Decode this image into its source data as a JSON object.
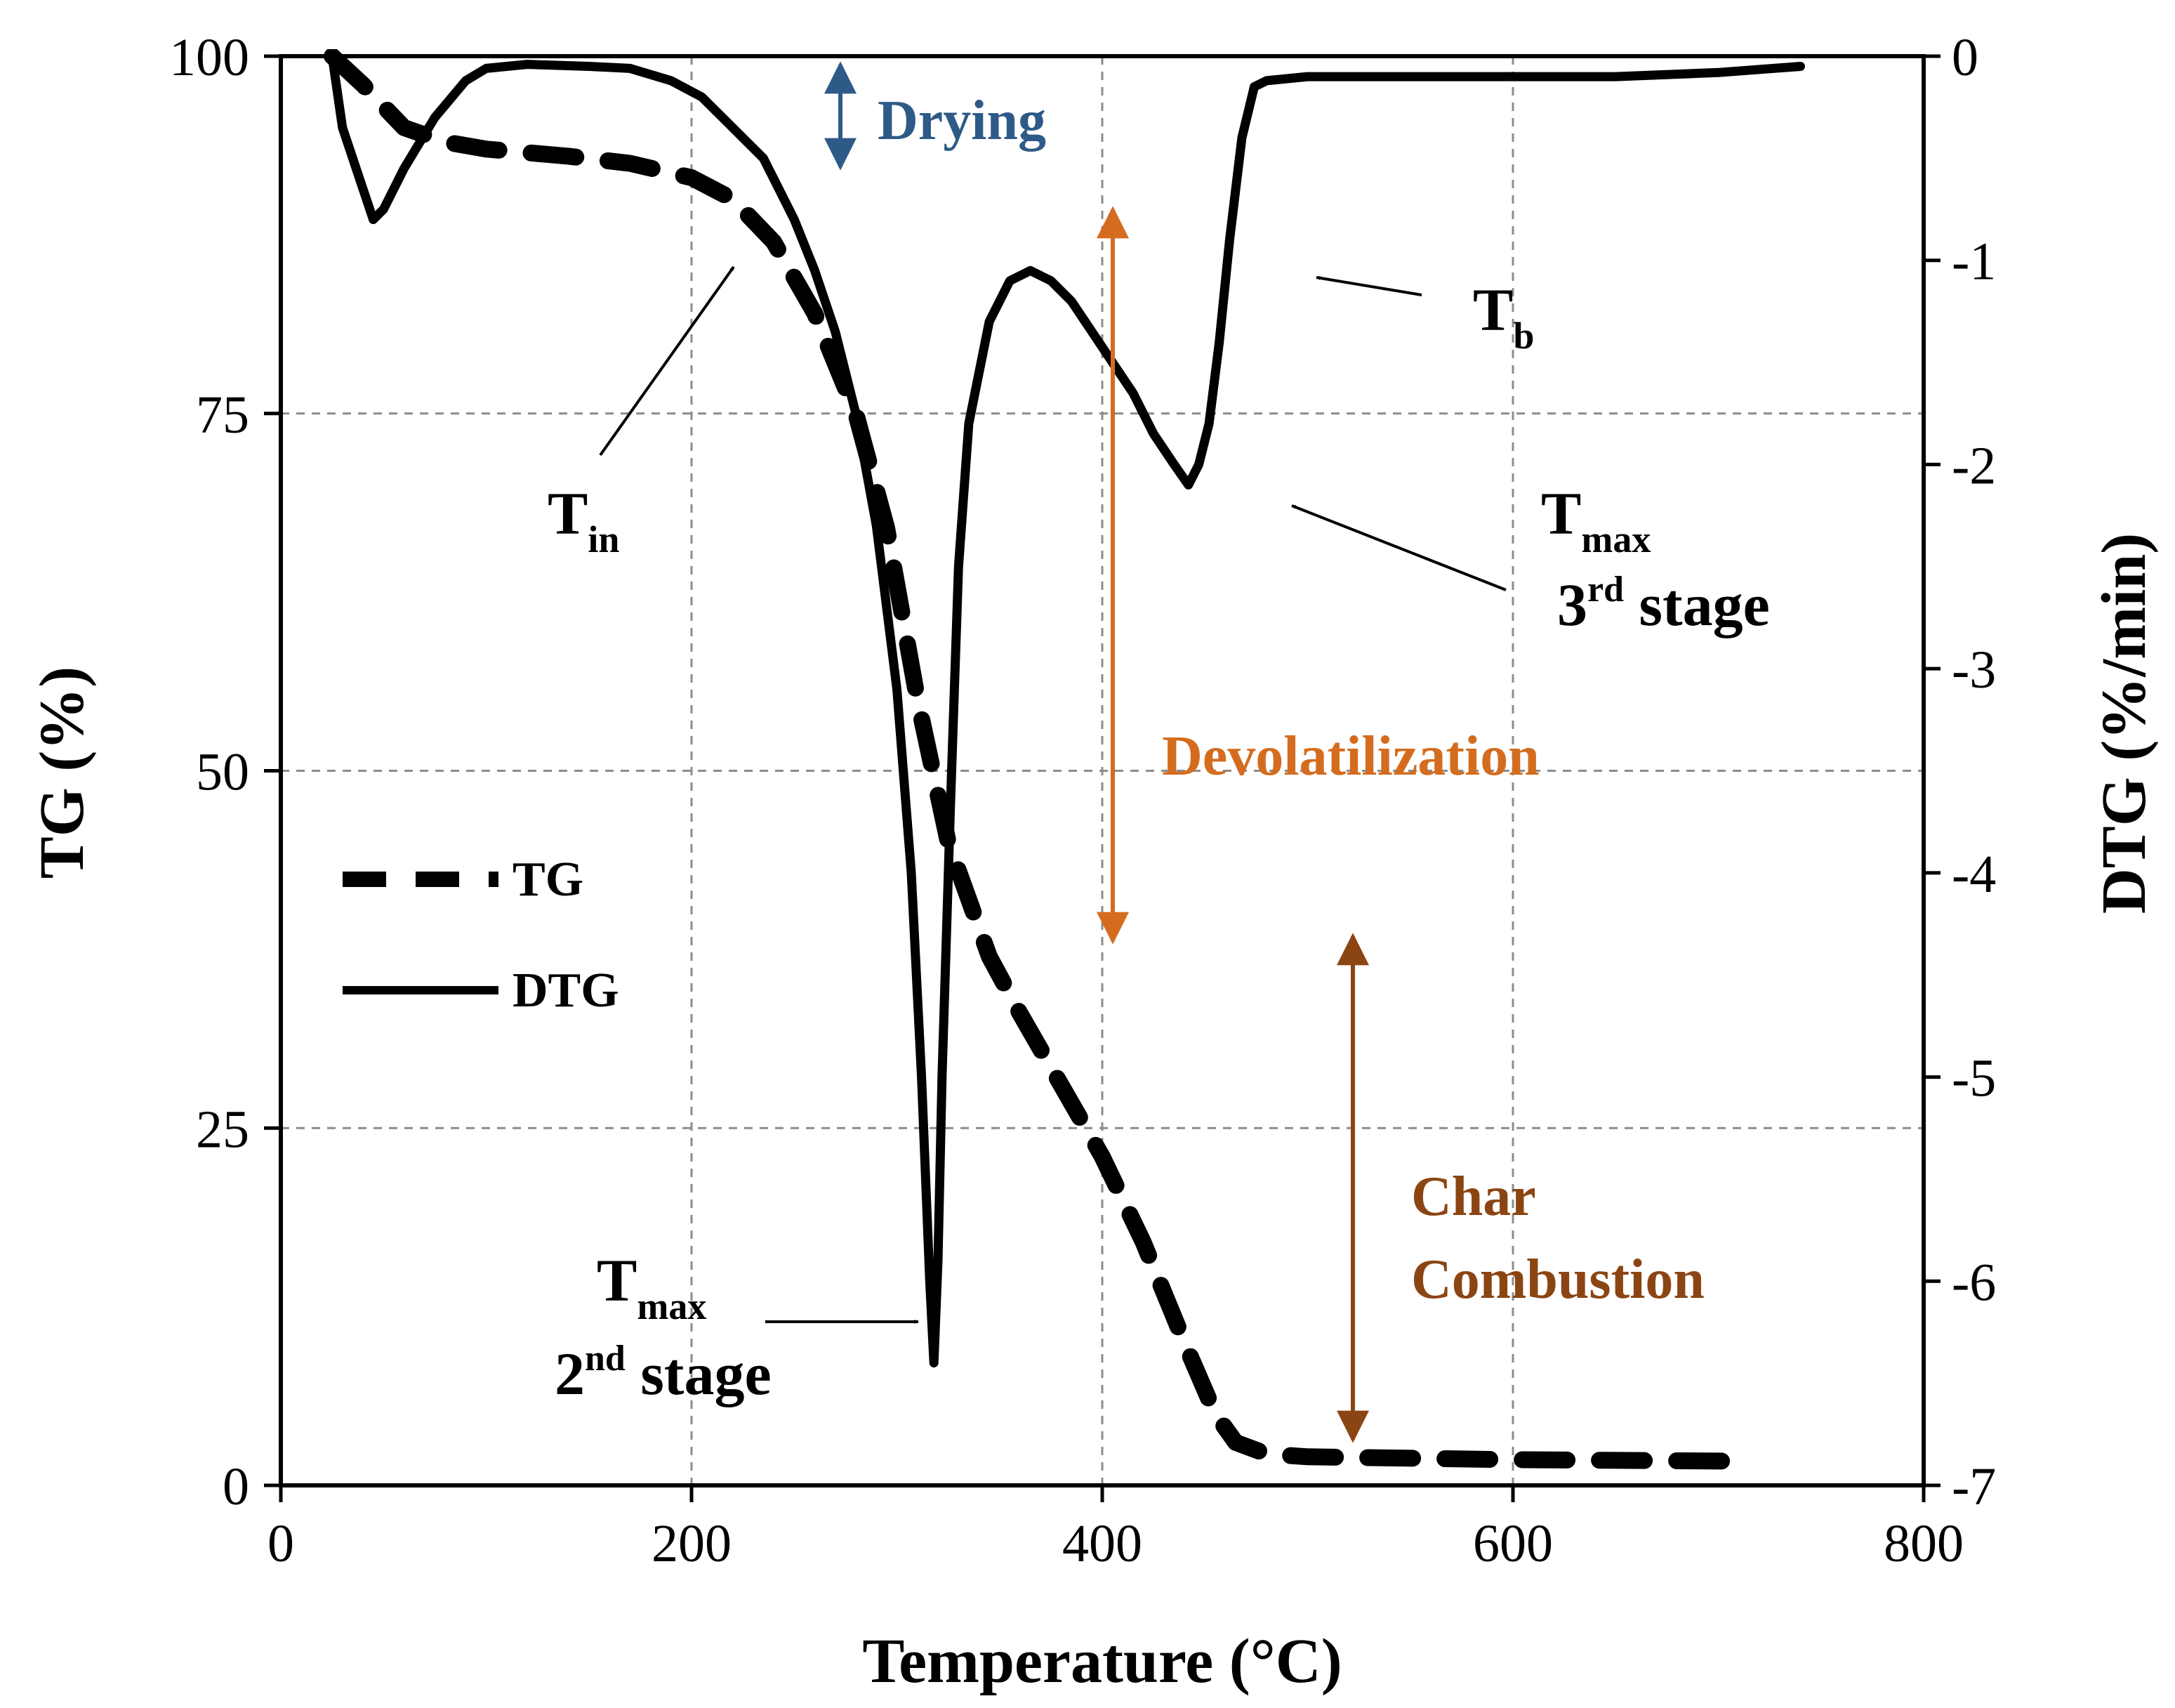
{
  "chart_data": {
    "type": "line",
    "title": "",
    "xlabel": "Temperature (°C)",
    "ylabel": "TG (%)",
    "y2label": "DTG (%/min)",
    "xlim": [
      0,
      800
    ],
    "ylim": [
      0,
      100
    ],
    "y2lim": [
      -7,
      0
    ],
    "x_ticks": [
      "0",
      "200",
      "400",
      "600",
      "800"
    ],
    "y_ticks": [
      "0",
      "25",
      "50",
      "75",
      "100"
    ],
    "y2_ticks": [
      "0",
      "-1",
      "-2",
      "-3",
      "-4",
      "-5",
      "-6",
      "-7"
    ],
    "grid": true,
    "legend": [
      {
        "name": "TG",
        "style": "dashed"
      },
      {
        "name": "DTG",
        "style": "solid"
      }
    ],
    "legend_position": "center-left",
    "series": [
      {
        "name": "TG",
        "axis": "left",
        "style": "dashed",
        "x": [
          25,
          40,
          60,
          80,
          100,
          140,
          170,
          200,
          220,
          240,
          260,
          280,
          295,
          310,
          325,
          335,
          345,
          360,
          380,
          400,
          420,
          440,
          455,
          465,
          480,
          500,
          600,
          700,
          710
        ],
        "y": [
          100,
          98,
          95,
          94,
          93.5,
          93,
          92.5,
          91.5,
          90,
          87,
          82,
          75,
          67,
          55,
          45,
          41,
          37,
          33,
          28,
          23,
          17,
          10,
          5,
          3,
          2.2,
          2,
          1.8,
          1.7,
          1.7
        ]
      },
      {
        "name": "DTG",
        "axis": "right",
        "style": "solid",
        "x": [
          25,
          30,
          40,
          45,
          50,
          60,
          75,
          90,
          100,
          120,
          150,
          170,
          190,
          205,
          220,
          235,
          250,
          260,
          270,
          280,
          290,
          300,
          307,
          312,
          316,
          318,
          320,
          322,
          326,
          330,
          335,
          345,
          355,
          365,
          375,
          385,
          395,
          405,
          415,
          425,
          435,
          442,
          447,
          452,
          457,
          462,
          468,
          474,
          480,
          500,
          550,
          600,
          650,
          700,
          740
        ],
        "y": [
          0,
          -0.35,
          -0.65,
          -0.8,
          -0.75,
          -0.55,
          -0.3,
          -0.12,
          -0.06,
          -0.04,
          -0.05,
          -0.06,
          -0.12,
          -0.2,
          -0.35,
          -0.5,
          -0.8,
          -1.05,
          -1.35,
          -1.75,
          -2.3,
          -3.1,
          -4.0,
          -5.0,
          -6.0,
          -6.4,
          -5.9,
          -5.0,
          -3.7,
          -2.5,
          -1.8,
          -1.3,
          -1.1,
          -1.05,
          -1.1,
          -1.2,
          -1.35,
          -1.5,
          -1.65,
          -1.85,
          -2.0,
          -2.1,
          -2.0,
          -1.8,
          -1.4,
          -0.9,
          -0.4,
          -0.15,
          -0.12,
          -0.1,
          -0.1,
          -0.1,
          -0.1,
          -0.08,
          -0.05
        ]
      }
    ],
    "annotations": [
      {
        "main": "T",
        "sub": "in"
      },
      {
        "main": "T",
        "sub": "b"
      },
      {
        "main": "T",
        "sub": "max",
        "line2_num": "3",
        "line2_sup": "rd",
        "line2_text": " stage"
      },
      {
        "main": "T",
        "sub": "max",
        "line2_num": "2",
        "line2_sup": "nd",
        "line2_text": " stage"
      }
    ],
    "stages": [
      {
        "label": "Drying",
        "color": "#2e5a87"
      },
      {
        "label": "Devolatilization",
        "color": "#d46c1f"
      },
      {
        "label": "Char",
        "label2": "Combustion",
        "color": "#8b4513"
      }
    ]
  }
}
